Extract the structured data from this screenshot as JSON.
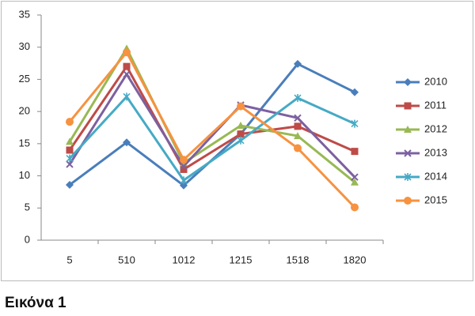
{
  "chart_data": {
    "type": "line",
    "categories": [
      "5",
      "510",
      "1012",
      "1215",
      "1518",
      "1820"
    ],
    "ylim": [
      0,
      35
    ],
    "yticks": [
      0,
      5,
      10,
      15,
      20,
      25,
      30,
      35
    ],
    "grid": false,
    "legend": "right",
    "series": [
      {
        "name": "2010",
        "color": "#4a7ebb",
        "marker": "diamond",
        "values": [
          8.6,
          15.2,
          8.5,
          16.5,
          27.4,
          23
        ]
      },
      {
        "name": "2011",
        "color": "#be4b48",
        "marker": "square",
        "values": [
          14,
          27,
          11,
          16.5,
          17.7,
          13.8
        ]
      },
      {
        "name": "2012",
        "color": "#98b954",
        "marker": "triangle",
        "values": [
          15.3,
          29.8,
          12,
          17.8,
          16.2,
          9
        ]
      },
      {
        "name": "2013",
        "color": "#7d60a0",
        "marker": "x",
        "values": [
          11.8,
          25.8,
          11.5,
          21,
          19,
          9.8
        ]
      },
      {
        "name": "2014",
        "color": "#46aac5",
        "marker": "star",
        "values": [
          12.7,
          22.3,
          9.3,
          15.5,
          22.1,
          18.1
        ]
      },
      {
        "name": "2015",
        "color": "#f69240",
        "marker": "circle",
        "values": [
          18.4,
          29.2,
          12.5,
          20.8,
          14.3,
          5.1
        ]
      }
    ]
  },
  "caption": "Εικόνα 1"
}
